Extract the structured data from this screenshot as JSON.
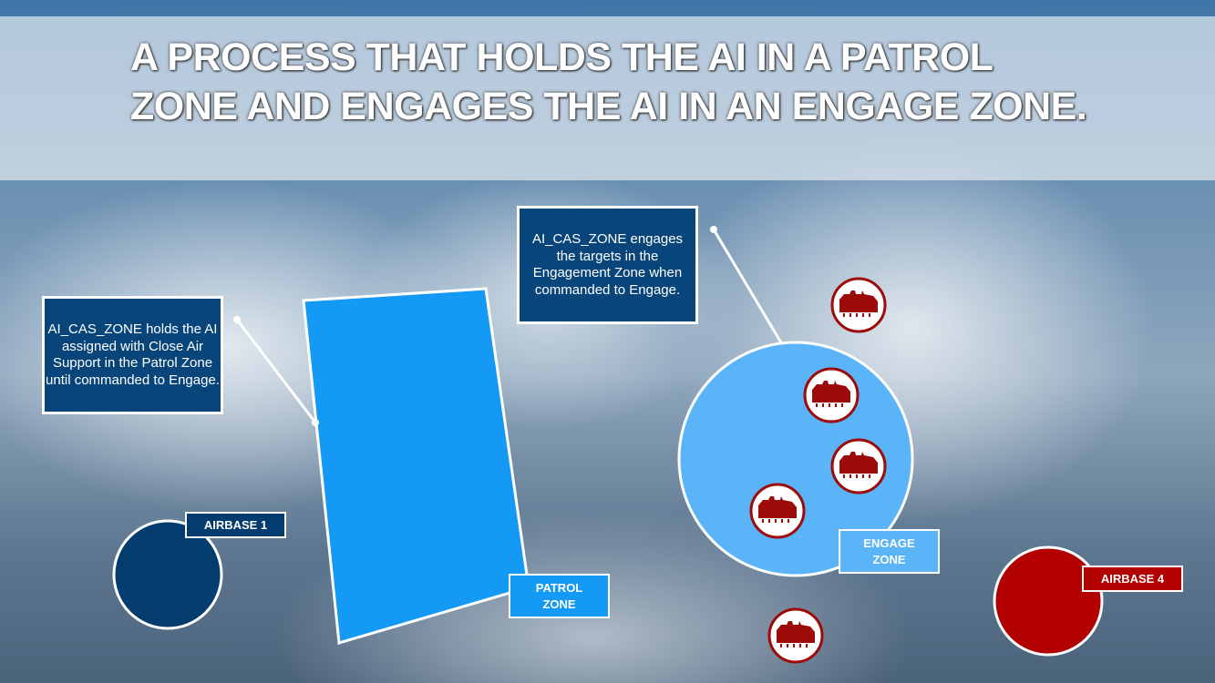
{
  "title": "A PROCESS THAT HOLDS THE AI IN A PATROL ZONE AND ENGAGES THE AI IN AN ENGAGE ZONE.",
  "callouts": {
    "patrol": "AI_CAS_ZONE holds the AI assigned with Close Air Support in the Patrol Zone until commanded to Engage.",
    "engage": "AI_CAS_ZONE engages the targets in the Engagement Zone when commanded to Engage."
  },
  "labels": {
    "airbase1": "AIRBASE 1",
    "airbase4": "AIRBASE 4",
    "patrol_zone": "PATROL ZONE",
    "engage_zone": "ENGAGE ZONE"
  },
  "colors": {
    "patrol_zone": "#1499f5",
    "engage_zone": "#5ab4f7",
    "airbase1": "#033d6f",
    "airbase4": "#b30000",
    "target": "#9c0a0a",
    "callout": "#08457a"
  },
  "icons": {
    "target": "tank-icon"
  }
}
